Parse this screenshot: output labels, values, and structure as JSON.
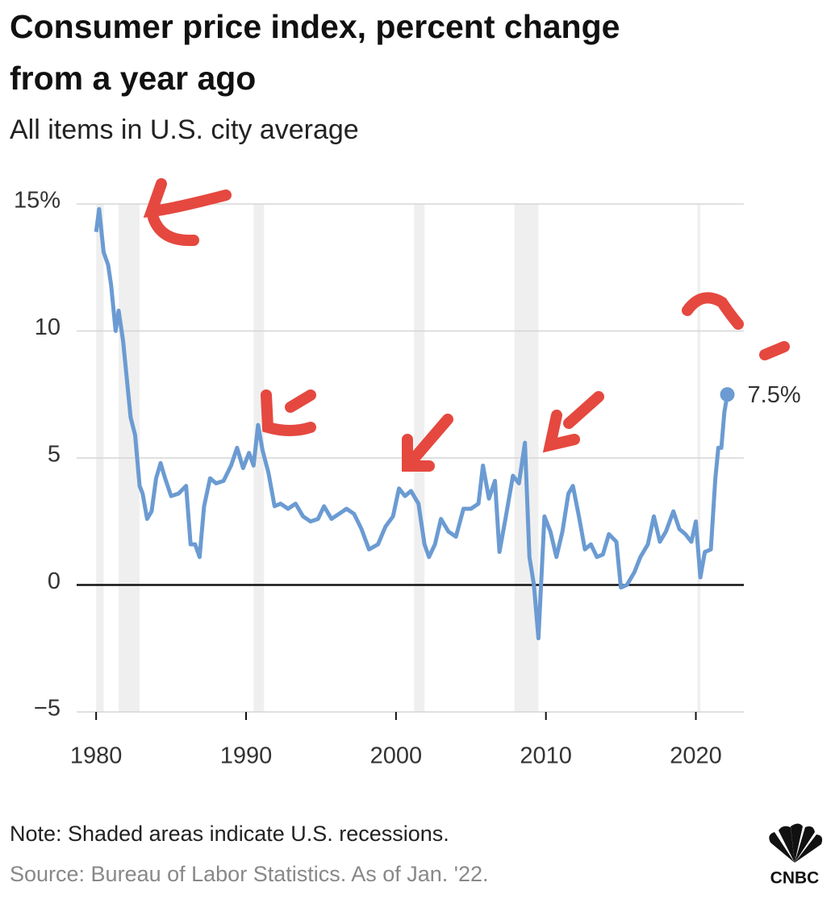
{
  "chart_data": {
    "type": "line",
    "title": [
      "Consumer price index, percent change",
      "from a year ago"
    ],
    "subtitle": "All items in U.S. city average",
    "note": "Note: Shaded areas indicate U.S. recessions.",
    "source": "Source: Bureau of Labor Statistics. As of Jan. '22.",
    "logo": "CNBC",
    "xlim": [
      1978.7,
      2023.2
    ],
    "ylim": [
      -5,
      15
    ],
    "xticks": [
      1980,
      1990,
      2000,
      2010,
      2020
    ],
    "yticks": [
      {
        "value": 15,
        "label": "15%"
      },
      10,
      5,
      0,
      {
        "value": -5,
        "label": "−5"
      }
    ],
    "grid": true,
    "recession_color": "#efefef",
    "recessions": [
      [
        1980.0,
        1980.5
      ],
      [
        1981.5,
        1982.9
      ],
      [
        1990.5,
        1991.2
      ],
      [
        2001.2,
        2001.9
      ],
      [
        2007.9,
        2009.5
      ],
      [
        2020.1,
        2020.3
      ]
    ],
    "x": [
      1980.0,
      1980.2,
      1980.5,
      1980.8,
      1981.0,
      1981.3,
      1981.5,
      1981.8,
      1982.0,
      1982.3,
      1982.6,
      1982.9,
      1983.1,
      1983.4,
      1983.7,
      1984.0,
      1984.3,
      1984.6,
      1985.0,
      1985.5,
      1986.0,
      1986.3,
      1986.6,
      1986.9,
      1987.2,
      1987.6,
      1988.0,
      1988.5,
      1989.0,
      1989.4,
      1989.8,
      1990.2,
      1990.5,
      1990.8,
      1991.1,
      1991.5,
      1991.9,
      1992.3,
      1992.8,
      1993.3,
      1993.8,
      1994.3,
      1994.8,
      1995.2,
      1995.7,
      1996.2,
      1996.7,
      1997.2,
      1997.7,
      1998.2,
      1998.8,
      1999.3,
      1999.8,
      2000.2,
      2000.6,
      2001.0,
      2001.5,
      2001.9,
      2002.2,
      2002.6,
      2003.0,
      2003.5,
      2004.0,
      2004.5,
      2005.0,
      2005.5,
      2005.8,
      2006.2,
      2006.6,
      2006.9,
      2007.3,
      2007.8,
      2008.2,
      2008.6,
      2008.9,
      2009.2,
      2009.5,
      2009.9,
      2010.3,
      2010.7,
      2011.1,
      2011.5,
      2011.8,
      2012.2,
      2012.6,
      2013.0,
      2013.4,
      2013.8,
      2014.2,
      2014.7,
      2015.0,
      2015.4,
      2015.9,
      2016.3,
      2016.8,
      2017.2,
      2017.6,
      2018.0,
      2018.5,
      2018.9,
      2019.3,
      2019.7,
      2020.0,
      2020.3,
      2020.6,
      2021.0,
      2021.3,
      2021.5,
      2021.7,
      2021.9,
      2022.1
    ],
    "series": [
      {
        "color": "#6b9bd2",
        "values": [
          13.9,
          14.8,
          13.1,
          12.6,
          11.8,
          10.0,
          10.8,
          9.6,
          8.4,
          6.6,
          5.9,
          3.9,
          3.6,
          2.6,
          2.9,
          4.2,
          4.8,
          4.2,
          3.5,
          3.6,
          3.9,
          1.6,
          1.6,
          1.1,
          3.1,
          4.2,
          4.0,
          4.1,
          4.7,
          5.4,
          4.6,
          5.2,
          4.7,
          6.3,
          5.3,
          4.4,
          3.1,
          3.2,
          3.0,
          3.2,
          2.7,
          2.5,
          2.6,
          3.1,
          2.6,
          2.8,
          3.0,
          2.8,
          2.2,
          1.4,
          1.6,
          2.3,
          2.7,
          3.8,
          3.5,
          3.7,
          3.2,
          1.6,
          1.1,
          1.6,
          2.6,
          2.1,
          1.9,
          3.0,
          3.0,
          3.2,
          4.7,
          3.4,
          4.1,
          1.3,
          2.6,
          4.3,
          4.0,
          5.6,
          1.1,
          0.0,
          -2.1,
          2.7,
          2.1,
          1.1,
          2.1,
          3.6,
          3.9,
          2.7,
          1.4,
          1.6,
          1.1,
          1.2,
          2.0,
          1.7,
          -0.1,
          0.0,
          0.5,
          1.1,
          1.6,
          2.7,
          1.7,
          2.1,
          2.9,
          2.2,
          2.0,
          1.7,
          2.5,
          0.3,
          1.3,
          1.4,
          4.2,
          5.4,
          5.4,
          6.8,
          7.5
        ]
      }
    ],
    "annotations": [
      {
        "x": 2022.1,
        "y": 7.5,
        "label": "7.5%"
      }
    ]
  }
}
